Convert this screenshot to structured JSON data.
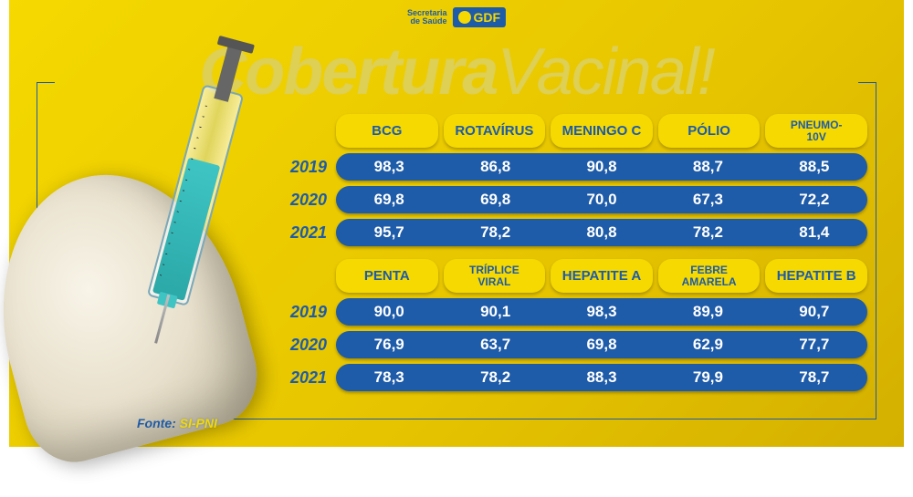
{
  "colors": {
    "bg_yellow": "#f5d900",
    "bg_yellow_dark": "#d4b000",
    "brand_blue": "#1e5ba8",
    "white": "#ffffff",
    "title_tint": "#decf55",
    "syringe_liquid": "#3fc4c4"
  },
  "header": {
    "org_line1": "Secretaria",
    "org_line2": "de Saúde",
    "gov_label": "GDF"
  },
  "title": {
    "bold": "Cobertura",
    "light": "Vacinal!"
  },
  "sections": [
    {
      "headers": [
        {
          "label": "BCG",
          "small": false
        },
        {
          "label": "ROTAVÍRUS",
          "small": false
        },
        {
          "label": "MENINGO C",
          "small": false
        },
        {
          "label": "PÓLIO",
          "small": false
        },
        {
          "label": "PNEUMO-\n10V",
          "small": true
        }
      ],
      "rows": [
        {
          "year": "2019",
          "values": [
            "98,3",
            "86,8",
            "90,8",
            "88,7",
            "88,5"
          ]
        },
        {
          "year": "2020",
          "values": [
            "69,8",
            "69,8",
            "70,0",
            "67,3",
            "72,2"
          ]
        },
        {
          "year": "2021",
          "values": [
            "95,7",
            "78,2",
            "80,8",
            "78,2",
            "81,4"
          ]
        }
      ]
    },
    {
      "headers": [
        {
          "label": "PENTA",
          "small": false
        },
        {
          "label": "TRÍPLICE\nVIRAL",
          "small": true
        },
        {
          "label": "HEPATITE A",
          "small": false
        },
        {
          "label": "FEBRE\nAMARELA",
          "small": true
        },
        {
          "label": "HEPATITE B",
          "small": false
        }
      ],
      "rows": [
        {
          "year": "2019",
          "values": [
            "90,0",
            "90,1",
            "98,3",
            "89,9",
            "90,7"
          ]
        },
        {
          "year": "2020",
          "values": [
            "76,9",
            "63,7",
            "69,8",
            "62,9",
            "77,7"
          ]
        },
        {
          "year": "2021",
          "values": [
            "78,3",
            "78,2",
            "88,3",
            "79,9",
            "78,7"
          ]
        }
      ]
    }
  ],
  "footer": {
    "label": "Fonte:",
    "source": "SI-PNI"
  },
  "styling": {
    "title_fontsize": 72,
    "header_cell_fontsize": 15,
    "header_cell_small_fontsize": 12,
    "year_fontsize": 18,
    "value_fontsize": 17,
    "pill_radius": 16,
    "header_radius": 14
  }
}
